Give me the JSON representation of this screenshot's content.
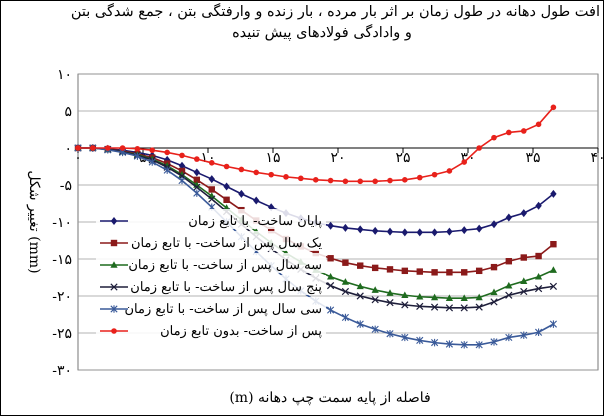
{
  "chart_data": {
    "type": "line",
    "title_line1": "افت طول دهانه در طول زمان بر اثر بار مرده ، بار زنده و وارفتگی بتن ، جمع شدگی بتن",
    "title_line2": "و وادادگی فولادهای پیش تنیده",
    "xlabel": "فاصله از پایه سمت چپ دهانه (m)",
    "ylabel": "تغییر شکل (mm)",
    "xlim": [
      0,
      40
    ],
    "ylim": [
      -30,
      10
    ],
    "xticks": [
      0,
      5,
      10,
      15,
      20,
      25,
      30,
      35,
      40
    ],
    "xtick_labels": [
      "۰",
      "۵",
      "۱۰",
      "۱۵",
      "۲۰",
      "۲۵",
      "۳۰",
      "۳۵",
      "۴۰"
    ],
    "yticks": [
      10,
      5,
      0,
      -5,
      -10,
      -15,
      -20,
      -25,
      -30
    ],
    "ytick_labels": [
      "۱۰",
      "۵",
      "۰",
      "-۵",
      "-۱۰",
      "-۱۵",
      "-۲۰",
      "-۲۵",
      "-۳۰"
    ],
    "grid": "horizontal",
    "legend_position": "left",
    "x": [
      0,
      1.14,
      2.29,
      3.43,
      4.57,
      5.71,
      6.86,
      8,
      9.14,
      10.29,
      11.43,
      12.57,
      13.71,
      14.86,
      16,
      17.14,
      18.29,
      19.43,
      20.57,
      21.71,
      22.86,
      24,
      25.14,
      26.29,
      27.43,
      28.57,
      29.71,
      30.86,
      32,
      33.14,
      34.29,
      35.43,
      36.57
    ],
    "series": [
      {
        "name": "پایان ساخت- با تابع زمان",
        "color": "#1a1a6e",
        "marker": "diamond",
        "values": [
          0,
          0,
          -0.1,
          -0.3,
          -0.6,
          -1.0,
          -1.6,
          -2.4,
          -3.3,
          -4.2,
          -5.2,
          -6.2,
          -7.1,
          -8.0,
          -8.8,
          -9.5,
          -10.1,
          -10.5,
          -10.8,
          -11.0,
          -11.2,
          -11.3,
          -11.4,
          -11.4,
          -11.4,
          -11.3,
          -11.1,
          -10.9,
          -10.3,
          -9.4,
          -8.8,
          -7.8,
          -6.2
        ]
      },
      {
        "name": "یک سال پس از ساخت- با تابع زمان",
        "color": "#8b1a1a",
        "marker": "square",
        "values": [
          0,
          0,
          -0.15,
          -0.4,
          -0.8,
          -1.3,
          -2.1,
          -3.1,
          -4.3,
          -5.6,
          -7.0,
          -8.4,
          -9.8,
          -11.1,
          -12.3,
          -13.3,
          -14.2,
          -14.9,
          -15.5,
          -15.9,
          -16.2,
          -16.4,
          -16.6,
          -16.7,
          -16.8,
          -16.8,
          -16.8,
          -16.6,
          -16.1,
          -15.3,
          -14.8,
          -14.6,
          -13.0
        ]
      },
      {
        "name": "سه سال پس از ساخت- با تابع زمان",
        "color": "#1f6b1f",
        "marker": "triangle",
        "values": [
          0,
          0,
          -0.2,
          -0.5,
          -0.9,
          -1.5,
          -2.4,
          -3.6,
          -5.0,
          -6.5,
          -8.1,
          -9.7,
          -11.3,
          -12.8,
          -14.2,
          -15.4,
          -16.5,
          -17.4,
          -18.1,
          -18.7,
          -19.2,
          -19.6,
          -19.9,
          -20.1,
          -20.2,
          -20.3,
          -20.3,
          -20.2,
          -19.5,
          -18.6,
          -18.0,
          -17.4,
          -16.5
        ]
      },
      {
        "name": "پنج سال پس از ساخت- با تابع زمان",
        "color": "#1e1e3a",
        "marker": "x",
        "values": [
          0,
          0,
          -0.2,
          -0.5,
          -1.0,
          -1.6,
          -2.6,
          -3.8,
          -5.3,
          -6.9,
          -8.6,
          -10.3,
          -12.0,
          -13.6,
          -15.1,
          -16.4,
          -17.6,
          -18.6,
          -19.4,
          -20.0,
          -20.5,
          -20.9,
          -21.2,
          -21.4,
          -21.5,
          -21.6,
          -21.6,
          -21.5,
          -20.8,
          -19.9,
          -19.4,
          -19.0,
          -18.7
        ]
      },
      {
        "name": "سی سال پس از ساخت- با تابع زمان",
        "color": "#3a5a99",
        "marker": "asterisk",
        "values": [
          0,
          0,
          -0.25,
          -0.6,
          -1.1,
          -1.9,
          -3.0,
          -4.4,
          -6.1,
          -8.0,
          -10.0,
          -12.0,
          -14.0,
          -15.9,
          -17.7,
          -19.3,
          -20.7,
          -21.9,
          -22.9,
          -23.8,
          -24.5,
          -25.1,
          -25.6,
          -26.0,
          -26.3,
          -26.5,
          -26.6,
          -26.6,
          -26.2,
          -25.6,
          -25.3,
          -24.9,
          -23.8
        ]
      },
      {
        "name": "پس از ساخت- بدون تابع زمان",
        "color": "#e8211b",
        "marker": "circle",
        "values": [
          0,
          0,
          0,
          0,
          -0.1,
          -0.3,
          -0.6,
          -1.0,
          -1.5,
          -2.0,
          -2.5,
          -2.9,
          -3.3,
          -3.6,
          -3.9,
          -4.1,
          -4.3,
          -4.4,
          -4.5,
          -4.5,
          -4.5,
          -4.4,
          -4.3,
          -4.0,
          -3.6,
          -3.1,
          -1.9,
          0.0,
          1.4,
          2.1,
          2.3,
          3.2,
          5.5
        ]
      }
    ]
  }
}
